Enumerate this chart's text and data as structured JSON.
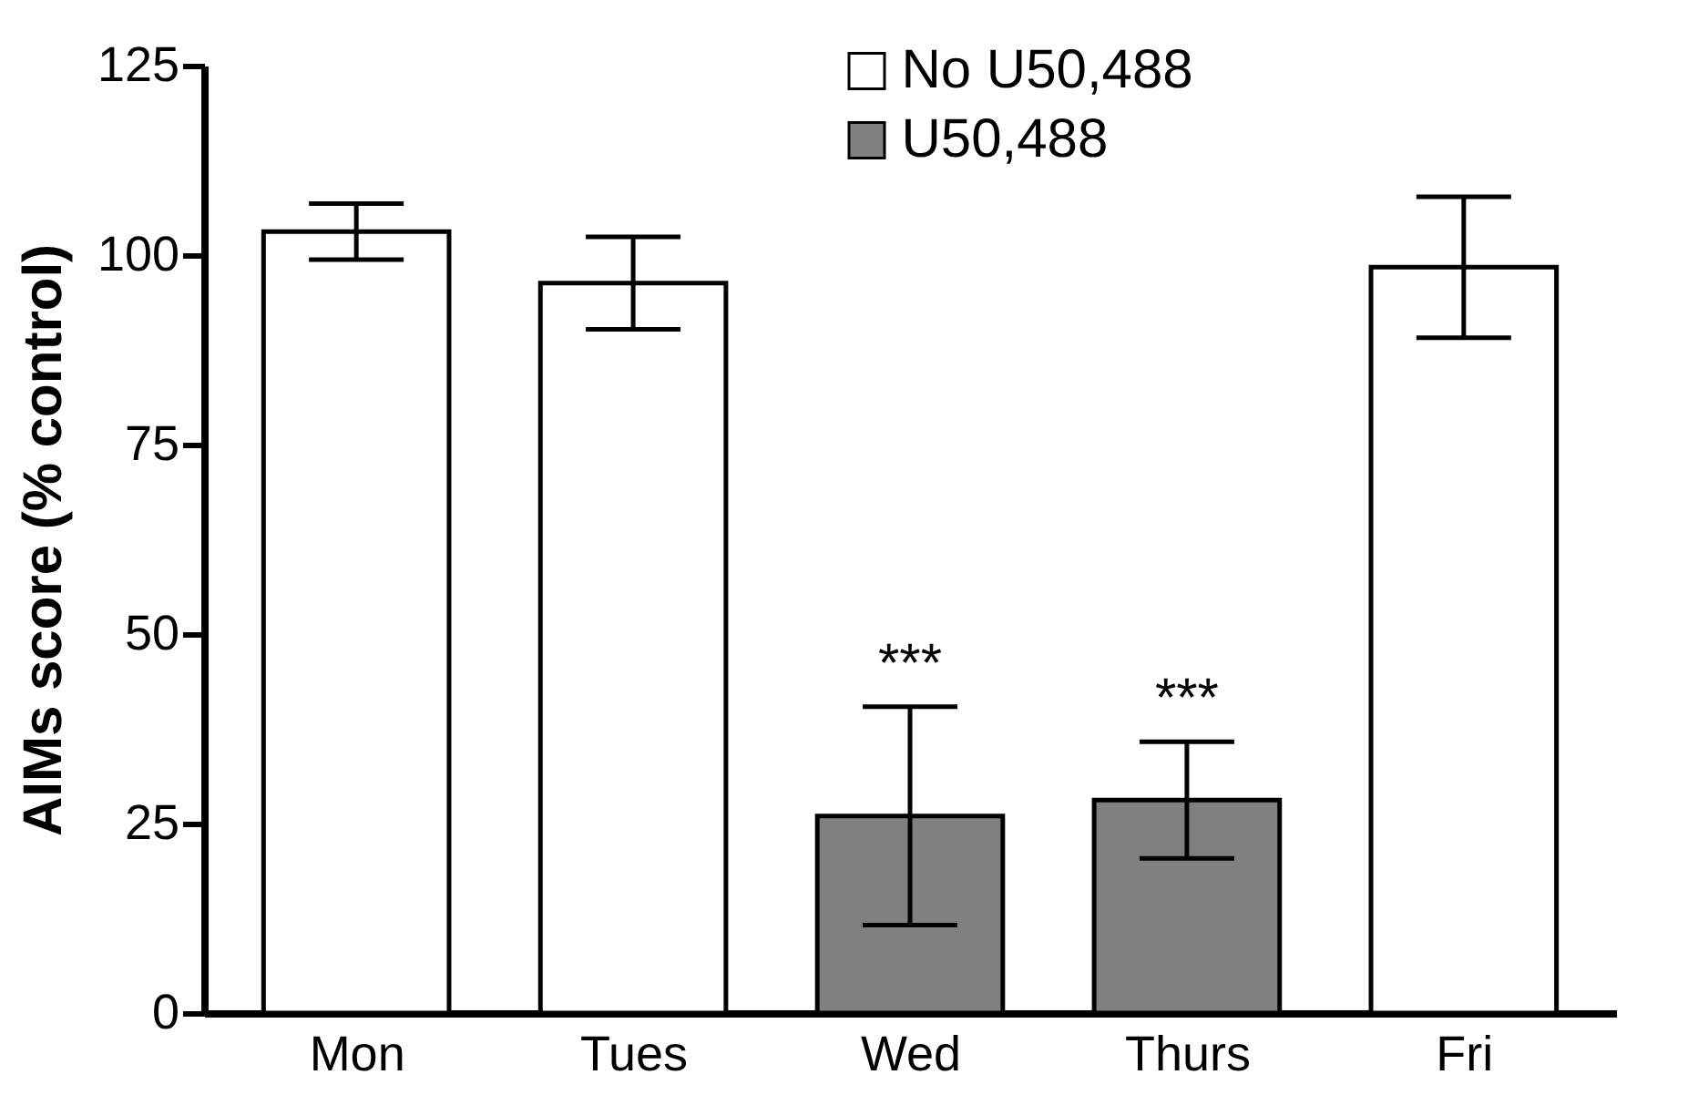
{
  "chart_data": {
    "type": "bar",
    "ylabel": "AIMs score (% control)",
    "categories": [
      "Mon",
      "Tues",
      "Wed",
      "Thurs",
      "Fri"
    ],
    "series": [
      {
        "name": "No U50,488",
        "color": "#ffffff",
        "values": [
          103.1,
          96.3,
          null,
          null,
          98.4
        ],
        "errors": [
          3.7,
          6.1,
          null,
          null,
          9.3
        ]
      },
      {
        "name": "U50,488",
        "color": "#808080",
        "values": [
          null,
          null,
          26.0,
          28.1,
          null
        ],
        "errors": [
          null,
          null,
          14.4,
          7.7,
          null
        ]
      }
    ],
    "ylim": [
      0,
      125
    ],
    "yticks": [
      0,
      25,
      50,
      75,
      100,
      125
    ],
    "legend": "top",
    "annotations": [
      {
        "text": "***",
        "x": "Wed",
        "y": 40.4
      },
      {
        "text": "***",
        "x": "Thurs",
        "y": 35.8
      }
    ]
  }
}
